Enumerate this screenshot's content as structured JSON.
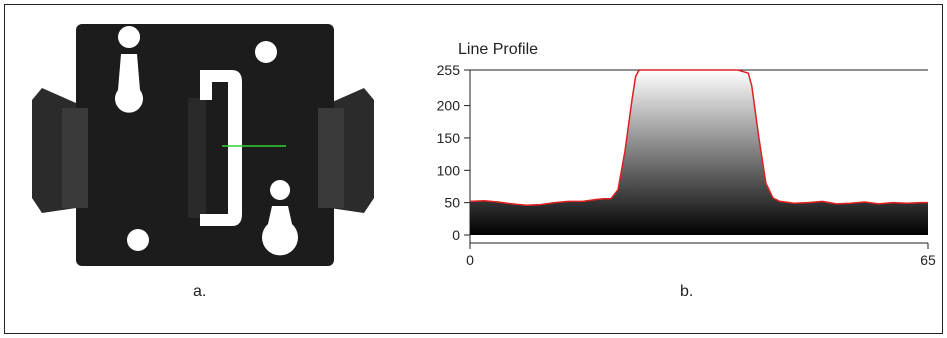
{
  "captions": {
    "a": "a.",
    "b": "b."
  },
  "colors": {
    "plate": "#1c1c1c",
    "profile_line": "#e02020",
    "scan_line": "#2fd12f",
    "axis": "#222222"
  },
  "chart_data": {
    "type": "area",
    "title": "Line Profile",
    "xlabel": "",
    "ylabel": "",
    "xlim": [
      0,
      65
    ],
    "ylim": [
      0,
      255
    ],
    "x_ticks": [
      0,
      65
    ],
    "y_ticks": [
      0,
      50,
      100,
      150,
      200,
      255
    ],
    "fill": "vertical gradient white (top) to black (bottom) under the curve",
    "grid": false,
    "series": [
      {
        "x": [
          0,
          2,
          4,
          6,
          8,
          10,
          12,
          14,
          16,
          18,
          19,
          20,
          21,
          22,
          23,
          23.5,
          24,
          28,
          32,
          36,
          38,
          39.5,
          40,
          41,
          42,
          43,
          44,
          46,
          48,
          50,
          52,
          54,
          56,
          58,
          60,
          62,
          64,
          65
        ],
        "y": [
          52,
          53,
          51,
          48,
          46,
          47,
          50,
          52,
          52,
          55,
          56,
          56,
          70,
          130,
          210,
          245,
          255,
          255,
          255,
          255,
          255,
          250,
          230,
          150,
          80,
          57,
          52,
          49,
          50,
          52,
          48,
          49,
          51,
          48,
          50,
          49,
          50,
          50
        ]
      }
    ]
  }
}
